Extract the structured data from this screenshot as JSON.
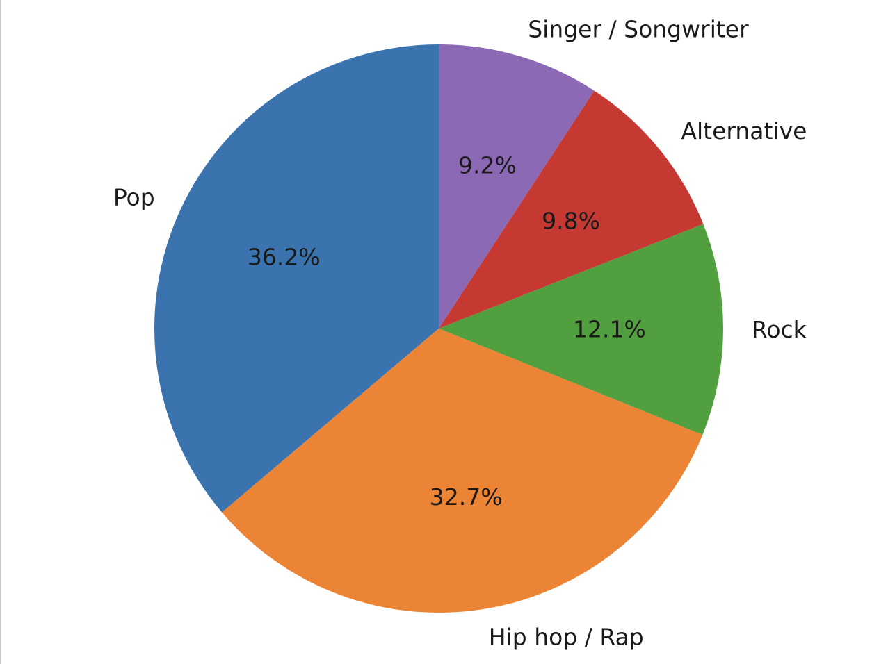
{
  "chart_data": {
    "type": "pie",
    "categories": [
      "Pop",
      "Hip hop / Rap",
      "Rock",
      "Alternative",
      "Singer / Songwriter"
    ],
    "values": [
      36.2,
      32.7,
      12.1,
      9.8,
      9.2
    ],
    "value_labels": [
      "36.2%",
      "32.7%",
      "12.1%",
      "9.8%",
      "9.2%"
    ],
    "colors": [
      "#3a73ad",
      "#ec8435",
      "#519f3e",
      "#c53932",
      "#8c69b4"
    ],
    "start_angle_deg": 90,
    "direction": "counterclockwise"
  }
}
